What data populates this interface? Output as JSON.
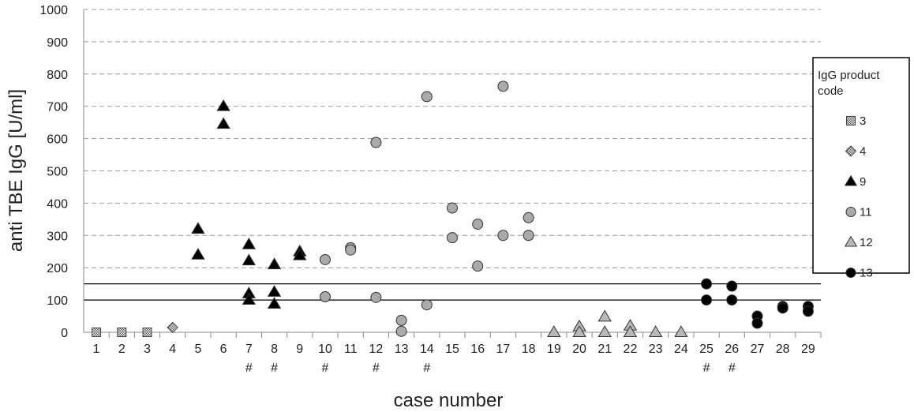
{
  "chart_data": {
    "type": "scatter",
    "xlabel": "case number",
    "ylabel": "anti TBE IgG [U/ml]",
    "ylim": [
      0,
      1000
    ],
    "yticks": [
      0,
      100,
      200,
      300,
      400,
      500,
      600,
      700,
      800,
      900,
      1000
    ],
    "categories": [
      "1",
      "2",
      "3",
      "4",
      "5",
      "6",
      "7",
      "8",
      "9",
      "10",
      "11",
      "12",
      "13",
      "14",
      "15",
      "16",
      "17",
      "18",
      "19",
      "20",
      "21",
      "22",
      "23",
      "24",
      "25",
      "26",
      "27",
      "28",
      "29"
    ],
    "grid": "horizontal dashed",
    "reference_lines": [
      100,
      150
    ],
    "hash_marks": {
      "symbol": "#",
      "cases": [
        "7",
        "8",
        "10",
        "12",
        "14",
        "25",
        "26"
      ]
    },
    "legend": {
      "title": "IgG product code",
      "position": "right"
    },
    "series": [
      {
        "name": "3",
        "marker": "hatched-square",
        "color": "#dddddd",
        "points": [
          [
            "1",
            0
          ],
          [
            "2",
            0
          ],
          [
            "3",
            0
          ]
        ]
      },
      {
        "name": "4",
        "marker": "hatched-diamond",
        "color": "#dddddd",
        "points": [
          [
            "4",
            15
          ]
        ]
      },
      {
        "name": "9",
        "marker": "triangle",
        "color": "#000000",
        "points": [
          [
            "5",
            320
          ],
          [
            "5",
            240
          ],
          [
            "6",
            700
          ],
          [
            "6",
            645
          ],
          [
            "7",
            272
          ],
          [
            "7",
            222
          ],
          [
            "7",
            120
          ],
          [
            "7",
            100
          ],
          [
            "8",
            210
          ],
          [
            "8",
            125
          ],
          [
            "8",
            88
          ],
          [
            "9",
            250
          ],
          [
            "9",
            238
          ]
        ]
      },
      {
        "name": "11",
        "marker": "circle",
        "color": "#aaaaaa",
        "points": [
          [
            "10",
            225
          ],
          [
            "10",
            110
          ],
          [
            "11",
            262
          ],
          [
            "11",
            255
          ],
          [
            "12",
            588
          ],
          [
            "12",
            108
          ],
          [
            "13",
            37
          ],
          [
            "13",
            3
          ],
          [
            "14",
            730
          ],
          [
            "14",
            85
          ],
          [
            "15",
            385
          ],
          [
            "15",
            293
          ],
          [
            "16",
            335
          ],
          [
            "16",
            205
          ],
          [
            "17",
            762
          ],
          [
            "17",
            300
          ],
          [
            "18",
            355
          ],
          [
            "18",
            300
          ]
        ]
      },
      {
        "name": "12",
        "marker": "triangle",
        "color": "#b8b8b8",
        "points": [
          [
            "19",
            0
          ],
          [
            "20",
            18
          ],
          [
            "20",
            0
          ],
          [
            "21",
            48
          ],
          [
            "21",
            0
          ],
          [
            "22",
            20
          ],
          [
            "22",
            0
          ],
          [
            "23",
            0
          ],
          [
            "24",
            0
          ]
        ]
      },
      {
        "name": "13",
        "marker": "circle",
        "color": "#000000",
        "points": [
          [
            "25",
            150
          ],
          [
            "25",
            100
          ],
          [
            "26",
            143
          ],
          [
            "26",
            100
          ],
          [
            "27",
            50
          ],
          [
            "27",
            28
          ],
          [
            "28",
            80
          ],
          [
            "28",
            75
          ],
          [
            "29",
            80
          ],
          [
            "29",
            65
          ]
        ]
      }
    ]
  }
}
